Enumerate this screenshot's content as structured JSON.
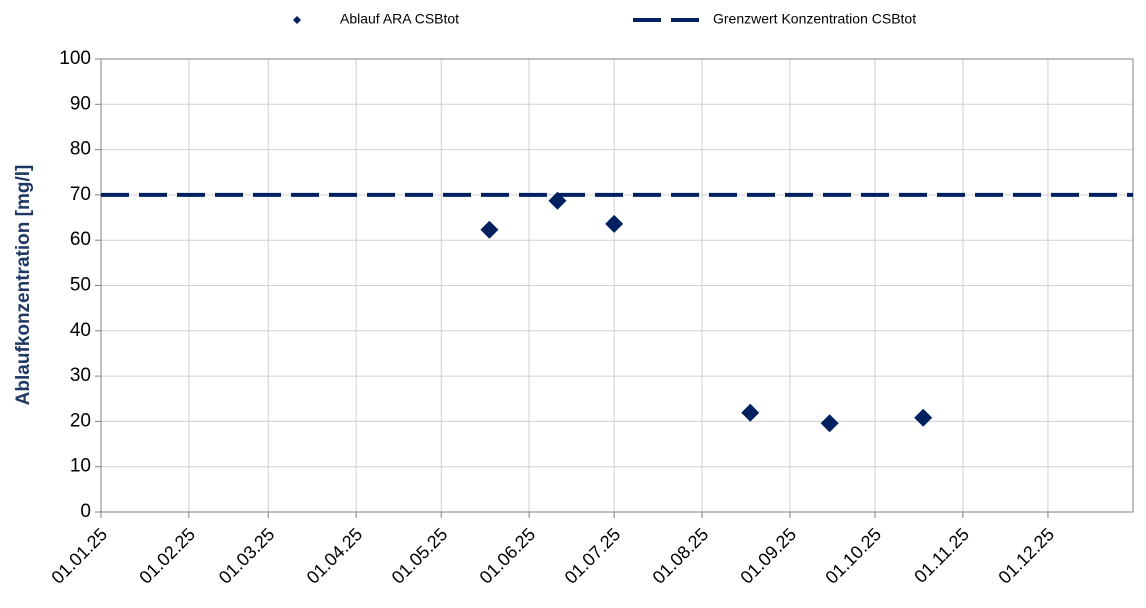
{
  "chart_data": {
    "type": "scatter",
    "y_label": "Ablaufkonzentration  [mg/l]",
    "series": [
      {
        "name": "Ablauf ARA CSBtot",
        "type": "scatter",
        "color": "#002060",
        "x": [
          "18.05.25",
          "11.06.25",
          "01.07.25",
          "18.08.25",
          "15.09.25",
          "18.10.25"
        ],
        "values": [
          62.3,
          68.7,
          63.6,
          21.9,
          19.6,
          20.8
        ]
      },
      {
        "name": "Grenzwert Konzentration CSBtot",
        "type": "line",
        "color": "#002060",
        "dashed": true,
        "x": [
          "01.01.25",
          "31.12.25"
        ],
        "values": [
          70,
          70
        ]
      }
    ],
    "xlim": [
      "01.01.25",
      "31.12.25"
    ],
    "xticks": [
      "01.01.25",
      "01.02.25",
      "01.03.25",
      "01.04.25",
      "01.05.25",
      "01.06.25",
      "01.07.25",
      "01.08.25",
      "01.09.25",
      "01.10.25",
      "01.11.25",
      "01.12.25"
    ],
    "ylim": [
      0,
      100
    ],
    "yticks": [
      0,
      10,
      20,
      30,
      40,
      50,
      60,
      70,
      80,
      90,
      100
    ],
    "grid": true,
    "legend": "top"
  }
}
